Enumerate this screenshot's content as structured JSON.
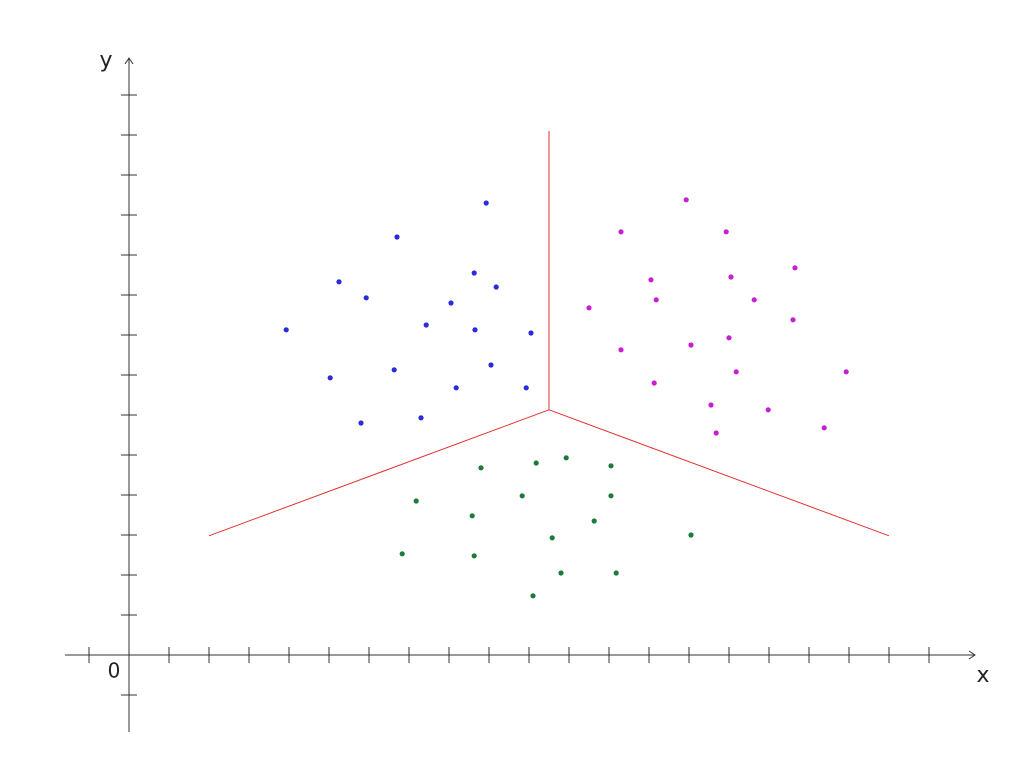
{
  "chart_data": {
    "type": "scatter",
    "x_label": "x",
    "y_label": "y",
    "origin_label": "0",
    "xlim": [
      -1.6,
      21.15
    ],
    "ylim": [
      -1.925,
      14.925
    ],
    "xticks": [
      -1,
      1,
      2,
      3,
      4,
      5,
      6,
      7,
      8,
      9,
      10,
      11,
      12,
      13,
      14,
      15,
      16,
      17,
      18,
      19,
      20
    ],
    "yticks": [
      -1,
      1,
      2,
      3,
      4,
      5,
      6,
      7,
      8,
      9,
      10,
      11,
      12,
      13,
      14
    ],
    "series": [
      {
        "color": "#2b2bdb",
        "x": [
          8.93,
          6.7,
          5.25,
          5.93,
          8.63,
          9.18,
          8.05,
          7.43,
          8.65,
          10.05,
          3.93,
          6.63,
          9.05,
          5.03,
          8.18,
          9.93,
          7.3,
          5.8
        ],
        "values": [
          11.3,
          10.45,
          9.33,
          8.93,
          9.55,
          9.2,
          8.8,
          8.25,
          8.13,
          8.05,
          8.13,
          7.13,
          7.25,
          6.93,
          6.68,
          6.68,
          5.93,
          5.8
        ]
      },
      {
        "color": "#c81fd0",
        "x": [
          13.93,
          12.3,
          14.93,
          16.65,
          13.05,
          15.05,
          13.18,
          15.63,
          11.5,
          16.6,
          15.0,
          14.05,
          12.3,
          15.18,
          17.93,
          13.13,
          14.55,
          15.98,
          14.68,
          17.38
        ],
        "values": [
          11.38,
          10.58,
          10.58,
          9.68,
          9.38,
          9.45,
          8.88,
          8.88,
          8.68,
          8.38,
          7.93,
          7.75,
          7.63,
          7.08,
          7.08,
          6.8,
          6.25,
          6.13,
          5.55,
          5.68
        ]
      },
      {
        "color": "#1e7a3a",
        "x": [
          8.8,
          10.18,
          10.93,
          12.05,
          7.18,
          9.83,
          12.05,
          8.58,
          11.63,
          10.58,
          14.05,
          6.83,
          8.63,
          10.8,
          12.18,
          10.1
        ],
        "values": [
          4.68,
          4.8,
          4.93,
          4.73,
          3.85,
          3.98,
          3.98,
          3.48,
          3.35,
          2.93,
          3.0,
          2.53,
          2.48,
          2.05,
          2.05,
          1.48
        ]
      }
    ],
    "lines": [
      {
        "color": "#e33030",
        "x": [
          10.5,
          10.5
        ],
        "values": [
          6.13,
          13.1
        ]
      },
      {
        "color": "#e33030",
        "x": [
          10.5,
          2
        ],
        "values": [
          6.13,
          2.98
        ]
      },
      {
        "color": "#e33030",
        "x": [
          10.5,
          19
        ],
        "values": [
          6.13,
          2.98
        ]
      }
    ]
  }
}
